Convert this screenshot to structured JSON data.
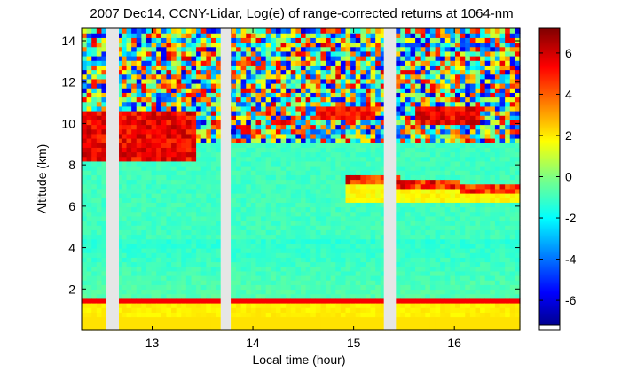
{
  "chart_data": {
    "type": "heatmap",
    "title": "2007 Dec14, CCNY-Lidar, Log(e) of range-corrected returns at 1064-nm",
    "xlabel": "Local time (hour)",
    "ylabel": "Altitude (km)",
    "xlim": [
      12.3,
      16.65
    ],
    "ylim": [
      0,
      14.6
    ],
    "xticks": [
      13,
      14,
      15,
      16
    ],
    "yticks": [
      2,
      4,
      6,
      8,
      10,
      12,
      14
    ],
    "colorbar": {
      "range": [
        -7.2,
        7.2
      ],
      "ticks": [
        -6,
        -4,
        -2,
        0,
        2,
        4,
        6
      ],
      "colormap": "jet"
    },
    "data_gaps_hour": [
      [
        12.54,
        12.67
      ],
      [
        13.68,
        13.78
      ],
      [
        15.3,
        15.42
      ]
    ],
    "features": {
      "boundary_layer_top_km": 1.3,
      "cirrus_cloud_km": [
        8.0,
        10.6
      ],
      "mid_level_cloud_km": [
        6.3,
        7.8
      ]
    }
  }
}
